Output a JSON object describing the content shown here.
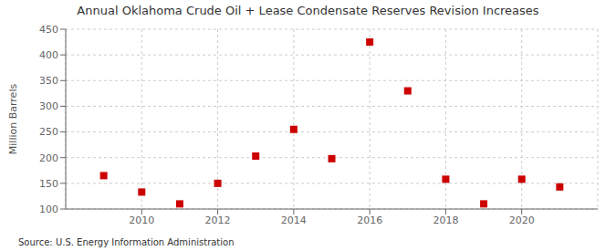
{
  "chart_data": {
    "type": "scatter",
    "title": "Annual Oklahoma Crude Oil + Lease Condensate Reserves Revision Increases",
    "ylabel": "Million Barrels",
    "annotation": "Source: U.S. Energy Information Administration",
    "x": [
      2009,
      2010,
      2011,
      2012,
      2013,
      2014,
      2015,
      2016,
      2017,
      2018,
      2019,
      2020,
      2021
    ],
    "values": [
      165,
      133,
      110,
      150,
      203,
      255,
      198,
      425,
      330,
      158,
      110,
      158,
      143
    ],
    "color": "#cc0000",
    "marker": "square",
    "xlim": [
      2008,
      2022
    ],
    "ylim": [
      100,
      450
    ],
    "xticks": [
      2010,
      2012,
      2014,
      2016,
      2018,
      2020
    ],
    "yticks": [
      100,
      150,
      200,
      250,
      300,
      350,
      400,
      450
    ],
    "grid": true
  }
}
